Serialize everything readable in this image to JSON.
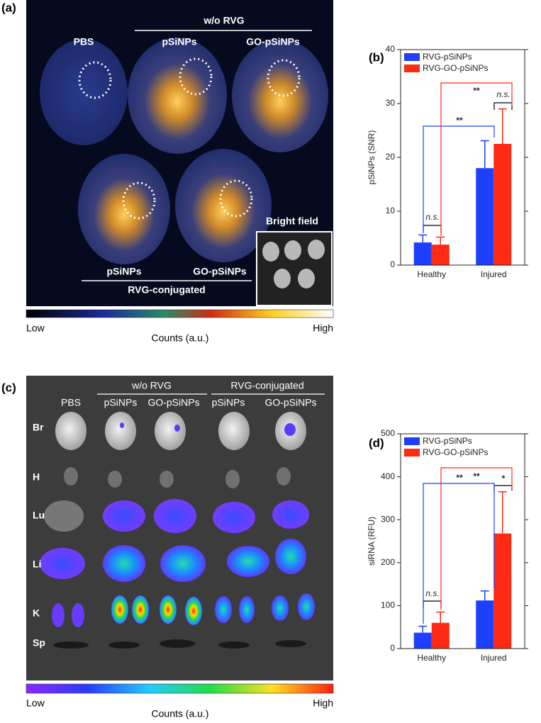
{
  "panel_a": {
    "label": "(a)",
    "group_top": "w/o RVG",
    "samples_top": [
      "PBS",
      "pSiNPs",
      "GO-pSiNPs"
    ],
    "samples_bottom": [
      "pSiNPs",
      "GO-pSiNPs"
    ],
    "group_bottom": "RVG-conjugated",
    "inset": "Bright field",
    "colorbar": {
      "low": "Low",
      "high": "High",
      "label": "Counts (a.u.)"
    }
  },
  "panel_c": {
    "label": "(c)",
    "groups": [
      "w/o RVG",
      "RVG-conjugated"
    ],
    "columns": [
      "PBS",
      "pSiNPs",
      "GO-pSiNPs",
      "pSiNPs",
      "GO-pSiNPs"
    ],
    "rows": [
      "Br",
      "H",
      "Lu",
      "Li",
      "K",
      "Sp"
    ],
    "colorbar": {
      "low": "Low",
      "high": "High",
      "label": "Counts (a.u.)"
    }
  },
  "chart_data": [
    {
      "type": "bar",
      "panel_label": "(b)",
      "y_label": "pSiNPs (SNR)",
      "categories": [
        "Healthy",
        "Injured"
      ],
      "series": [
        {
          "name": "RVG-pSiNPs",
          "color": "#1f3fff",
          "values": [
            4.2,
            18
          ],
          "errors": [
            1.4,
            5.1
          ]
        },
        {
          "name": "RVG-GO-pSiNPs",
          "color": "#ff2a12",
          "values": [
            3.8,
            22.5
          ],
          "errors": [
            1.4,
            6.5
          ]
        }
      ],
      "ylim": [
        0,
        40
      ],
      "yticks": [
        0,
        10,
        20,
        30,
        40
      ],
      "annotations": [
        {
          "text": "n.s.",
          "color": "#000000"
        },
        {
          "text": "n.s.",
          "color": "#000000"
        },
        {
          "text": "**",
          "color": "#1f3fff"
        },
        {
          "text": "**",
          "color": "#ff2a12"
        }
      ]
    },
    {
      "type": "bar",
      "panel_label": "(d)",
      "y_label": "siRNA (RFU)",
      "categories": [
        "Healthy",
        "Injured"
      ],
      "series": [
        {
          "name": "RVG-pSiNPs",
          "color": "#1f3fff",
          "values": [
            37,
            112
          ],
          "errors": [
            15,
            22
          ]
        },
        {
          "name": "RVG-GO-pSiNPs",
          "color": "#ff2a12",
          "values": [
            60,
            268
          ],
          "errors": [
            25,
            97
          ]
        }
      ],
      "ylim": [
        0,
        500
      ],
      "yticks": [
        0,
        100,
        200,
        300,
        400,
        500
      ],
      "annotations": [
        {
          "text": "n.s.",
          "color": "#000000"
        },
        {
          "text": "*",
          "color": "#000000"
        },
        {
          "text": "**",
          "color": "#1f3fff"
        },
        {
          "text": "**",
          "color": "#ff2a12"
        }
      ]
    }
  ]
}
